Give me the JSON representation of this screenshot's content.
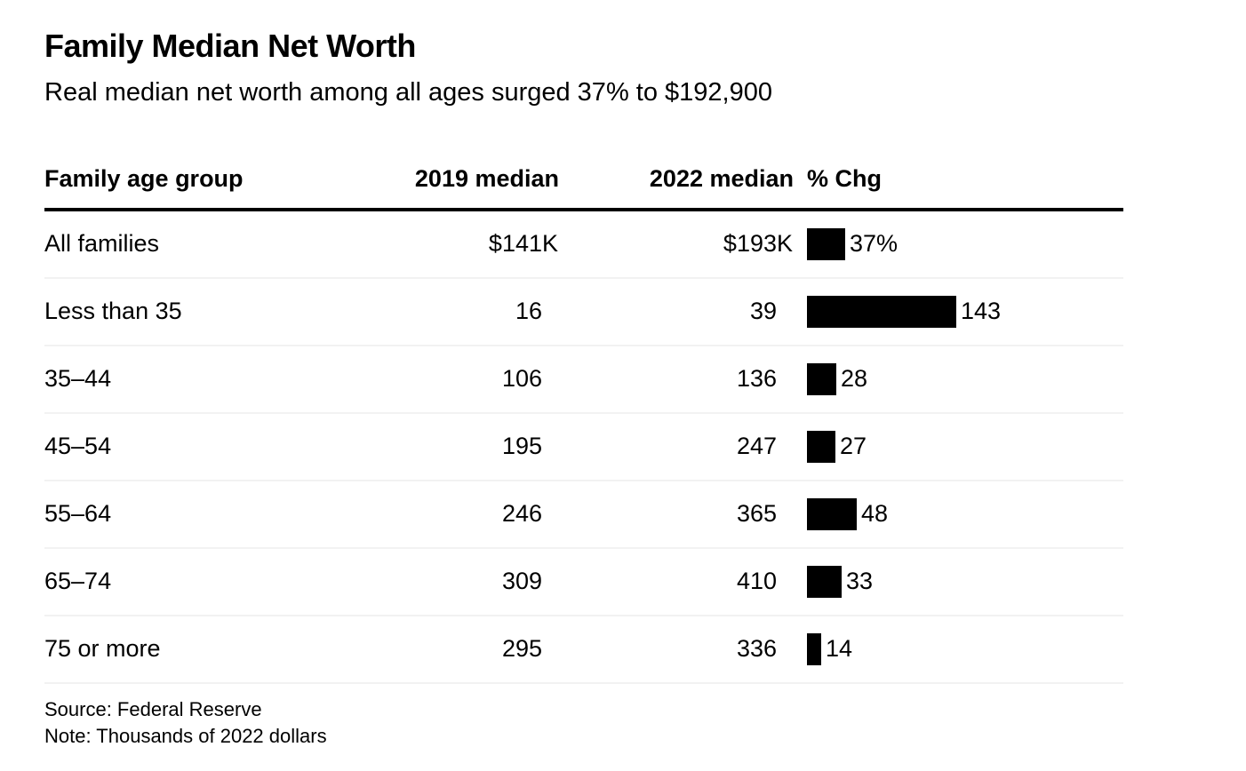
{
  "header": {
    "title": "Family Median Net Worth",
    "subtitle": "Real median net worth among all ages surged 37% to $192,900"
  },
  "table": {
    "columns": [
      "Family age group",
      "2019 median",
      "2022 median",
      "% Chg"
    ],
    "rows": [
      {
        "group": "All families",
        "y2019": "$141",
        "y2019_unit": "K",
        "y2022": "$193",
        "y2022_unit": "K",
        "chg": 37,
        "chg_label": "37%"
      },
      {
        "group": "Less than 35",
        "y2019": "16",
        "y2019_unit": "",
        "y2022": "39",
        "y2022_unit": "",
        "chg": 143,
        "chg_label": "143"
      },
      {
        "group": "35–44",
        "y2019": "106",
        "y2019_unit": "",
        "y2022": "136",
        "y2022_unit": "",
        "chg": 28,
        "chg_label": "28"
      },
      {
        "group": "45–54",
        "y2019": "195",
        "y2019_unit": "",
        "y2022": "247",
        "y2022_unit": "",
        "chg": 27,
        "chg_label": "27"
      },
      {
        "group": "55–64",
        "y2019": "246",
        "y2019_unit": "",
        "y2022": "365",
        "y2022_unit": "",
        "chg": 48,
        "chg_label": "48"
      },
      {
        "group": "65–74",
        "y2019": "309",
        "y2019_unit": "",
        "y2022": "410",
        "y2022_unit": "",
        "chg": 33,
        "chg_label": "33"
      },
      {
        "group": "75 or more",
        "y2019": "295",
        "y2019_unit": "",
        "y2022": "336",
        "y2022_unit": "",
        "chg": 14,
        "chg_label": "14"
      }
    ]
  },
  "footer": {
    "source": "Source: Federal Reserve",
    "note": "Note: Thousands of 2022 dollars"
  },
  "colors": {
    "bar": "#000000",
    "text": "#000000",
    "header_rule": "#000000",
    "row_divider": "#f2f2f2",
    "background": "#ffffff"
  },
  "chart_data": {
    "type": "table",
    "title": "Family Median Net Worth",
    "subtitle": "Real median net worth among all ages surged 37% to $192,900",
    "columns": [
      "Family age group",
      "2019 median",
      "2022 median",
      "% Chg"
    ],
    "categories": [
      "All families",
      "Less than 35",
      "35–44",
      "45–54",
      "55–64",
      "65–74",
      "75 or more"
    ],
    "series": [
      {
        "name": "2019 median",
        "values": [
          141,
          16,
          106,
          195,
          246,
          309,
          295
        ]
      },
      {
        "name": "2022 median",
        "values": [
          193,
          39,
          136,
          247,
          365,
          410,
          336
        ]
      },
      {
        "name": "% Chg",
        "values": [
          37,
          143,
          28,
          27,
          48,
          33,
          14
        ]
      }
    ],
    "bar_column": "% Chg",
    "bar_range": [
      0,
      143
    ],
    "units": "Thousands of 2022 dollars",
    "source": "Source: Federal Reserve",
    "note": "Note: Thousands of 2022 dollars"
  }
}
